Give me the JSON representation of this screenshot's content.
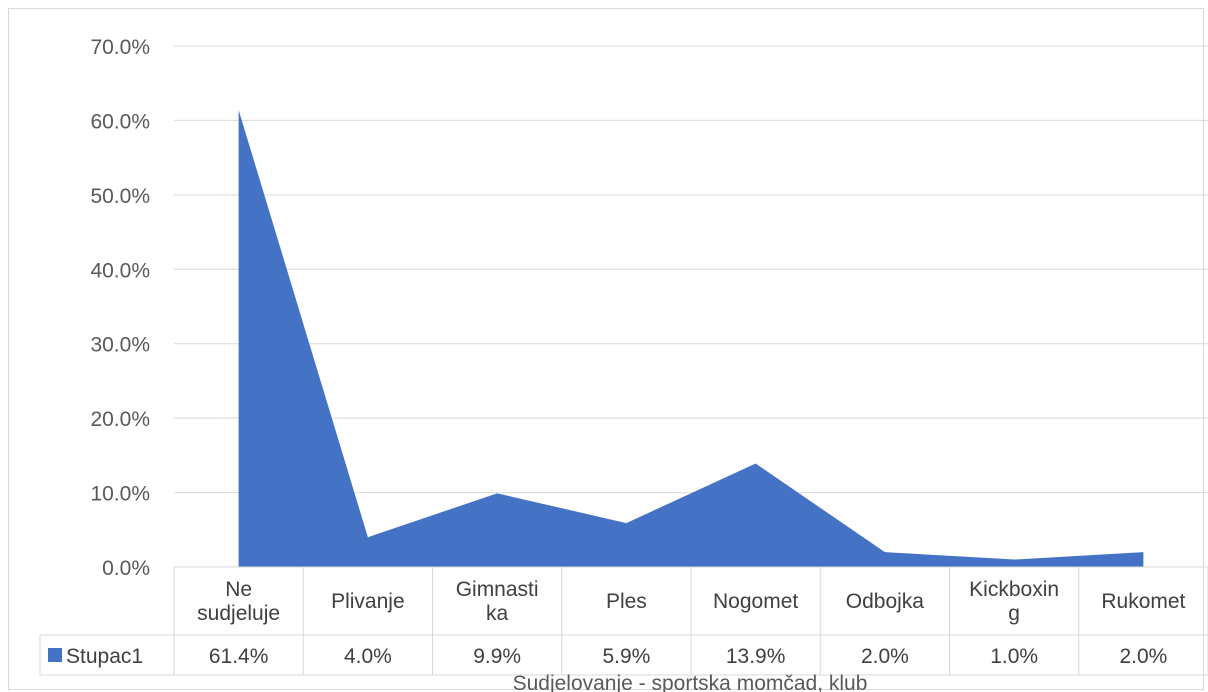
{
  "chart_data": {
    "type": "area",
    "title": "",
    "xlabel": "Sudjelovanje - sportska momčad, klub",
    "ylabel": "",
    "ylim": [
      0,
      70
    ],
    "y_ticks": [
      "0.0%",
      "10.0%",
      "20.0%",
      "30.0%",
      "40.0%",
      "50.0%",
      "60.0%",
      "70.0%"
    ],
    "grid": true,
    "categories": [
      [
        "Ne",
        "sudjeluje"
      ],
      [
        "Plivanje"
      ],
      [
        "Gimnasti",
        "ka"
      ],
      [
        "Ples"
      ],
      [
        "Nogomet"
      ],
      [
        "Odbojka"
      ],
      [
        "Kickboxin",
        "g"
      ],
      [
        "Rukomet"
      ]
    ],
    "series": [
      {
        "name": "Stupac1",
        "color": "#4472c4",
        "values": [
          61.4,
          4.0,
          9.9,
          5.9,
          13.9,
          2.0,
          1.0,
          2.0
        ],
        "labels": [
          "61.4%",
          "4.0%",
          "9.9%",
          "5.9%",
          "13.9%",
          "2.0%",
          "1.0%",
          "2.0%"
        ]
      }
    ],
    "legend": "data-table"
  }
}
